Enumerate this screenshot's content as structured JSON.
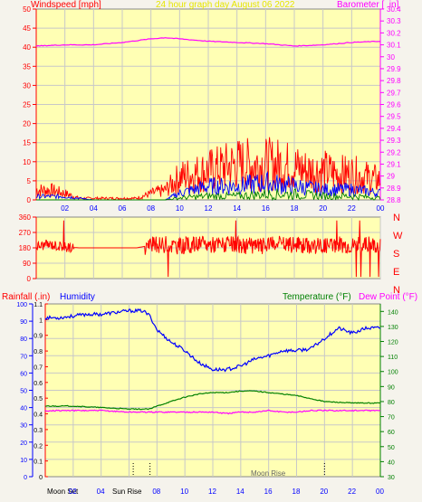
{
  "colors": {
    "background": "#f5f3ec",
    "plot_bg": "#ffffb4",
    "grid": "#c8c8c8",
    "axis_red": "#ff0000",
    "magenta": "#ff00ff",
    "blue": "#0000ff",
    "green": "#008000",
    "title_yellow": "#e6e600",
    "dark": "#000000"
  },
  "chart_data": [
    {
      "id": "wind",
      "type": "line",
      "title": "24 hour graph day   August 06 2022",
      "left_label": "Windspeed [mph]",
      "right_label": "Barometer [ .in]",
      "x_ticks": [
        "02",
        "04",
        "06",
        "08",
        "10",
        "12",
        "14",
        "16",
        "18",
        "20",
        "22",
        "00"
      ],
      "y_left_ticks": [
        "0",
        "5",
        "10",
        "15",
        "20",
        "25",
        "30",
        "35",
        "40",
        "45",
        "50"
      ],
      "y_left_lim": [
        0,
        50
      ],
      "y_right_ticks": [
        "28.8",
        "28.9",
        "29",
        "29.1",
        "29.2",
        "29.3",
        "29.4",
        "29.5",
        "29.6",
        "29.7",
        "29.8",
        "29.9",
        "30",
        "30.1",
        "30.2",
        "30.3",
        "30.4"
      ],
      "y_right_lim": [
        28.8,
        30.4
      ],
      "grid": true,
      "series": [
        {
          "key": "barometer",
          "axis": "right",
          "x": [
            0,
            2,
            4,
            6,
            8,
            9,
            10,
            12,
            14,
            16,
            18,
            20,
            22,
            24
          ],
          "y": [
            30.09,
            30.1,
            30.1,
            30.12,
            30.15,
            30.16,
            30.15,
            30.13,
            30.12,
            30.11,
            30.09,
            30.1,
            30.12,
            30.13
          ]
        },
        {
          "key": "gust",
          "axis": "left",
          "x": [
            0,
            1,
            2,
            3,
            4,
            5,
            6,
            7,
            8,
            9,
            10,
            11,
            12,
            13,
            14,
            15,
            16,
            17,
            18,
            19,
            20,
            21,
            22,
            23,
            24
          ],
          "y": [
            3,
            3,
            2,
            0.5,
            0.5,
            0.5,
            0.5,
            0.5,
            2,
            3,
            7,
            8,
            9,
            10,
            11,
            11,
            11,
            11,
            10,
            9,
            9,
            8,
            8,
            7,
            6
          ]
        },
        {
          "key": "wind_avg",
          "axis": "left",
          "x": [
            0,
            2,
            4,
            6,
            8,
            9,
            10,
            12,
            14,
            16,
            18,
            20,
            22,
            24
          ],
          "y": [
            1,
            1,
            0,
            0,
            0,
            0,
            2,
            4,
            4,
            5,
            4,
            3,
            3,
            2
          ]
        },
        {
          "key": "wind_low",
          "axis": "left",
          "x": [
            0,
            2,
            4,
            6,
            8,
            9,
            10,
            12,
            14,
            16,
            18,
            20,
            22,
            24
          ],
          "y": [
            0,
            0,
            0,
            0,
            0,
            0,
            0.5,
            1,
            1,
            1.5,
            1.5,
            1,
            1,
            0.5
          ]
        }
      ]
    },
    {
      "id": "dir",
      "type": "line",
      "right_labels": [
        "N",
        "W",
        "S",
        "E",
        "N"
      ],
      "y_left_ticks": [
        "0",
        "90",
        "180",
        "270",
        "360"
      ],
      "y_left_lim": [
        0,
        360
      ],
      "grid": true,
      "series": [
        {
          "key": "direction",
          "axis": "left",
          "x": [
            0,
            1,
            2,
            3,
            4,
            5,
            6,
            7,
            8,
            9,
            10,
            11,
            12,
            13,
            14,
            15,
            16,
            17,
            18,
            19,
            20,
            21,
            22,
            23,
            24
          ],
          "y": [
            190,
            200,
            185,
            180,
            180,
            180,
            180,
            180,
            195,
            200,
            190,
            200,
            200,
            200,
            195,
            190,
            195,
            200,
            200,
            195,
            195,
            200,
            195,
            200,
            200
          ]
        }
      ]
    },
    {
      "id": "temp",
      "type": "line",
      "left_labels": [
        "Rainfall (.in)",
        "Humidity"
      ],
      "right_labels": [
        "Temperature (°F)",
        "Dew Point (°F)"
      ],
      "y_left_ticks": [
        "0",
        "10",
        "20",
        "30",
        "40",
        "50",
        "60",
        "70",
        "80",
        "90",
        "100"
      ],
      "y_left_lim": [
        0,
        100
      ],
      "y_rain_ticks": [
        "0",
        "0.1",
        "0.2",
        "0.3",
        "0.4",
        "0.5",
        "0.6",
        "0.7",
        "0.8",
        "0.9",
        "1",
        "1.1"
      ],
      "y_rain_lim": [
        0,
        1.1
      ],
      "y_right_ticks": [
        "30",
        "40",
        "50",
        "60",
        "70",
        "80",
        "90",
        "100",
        "110",
        "120",
        "130",
        "140"
      ],
      "y_right_lim": [
        30,
        145
      ],
      "x_ticks": [
        "Moon Set",
        "02",
        "04",
        "Sun Rise",
        "08",
        "10",
        "12",
        "14",
        "16",
        "18",
        "20",
        "22",
        "00"
      ],
      "moon_rise_label": "Moon Rise",
      "grid": true,
      "series": [
        {
          "key": "humidity",
          "axis": "left",
          "x": [
            0,
            1,
            2,
            3,
            4,
            5,
            6,
            7,
            7.5,
            8,
            9,
            10,
            11,
            12,
            13,
            14,
            15,
            16,
            17,
            18,
            19,
            20,
            21,
            22,
            23,
            24
          ],
          "y": [
            92,
            92,
            93,
            94,
            94,
            95,
            96,
            96,
            93,
            85,
            78,
            73,
            66,
            62,
            62,
            64,
            68,
            70,
            73,
            73,
            74,
            80,
            86,
            83,
            86,
            86
          ]
        },
        {
          "key": "temperature",
          "axis": "right",
          "x": [
            0,
            2,
            4,
            6,
            7.5,
            8,
            9,
            10,
            11,
            12,
            13,
            14,
            15,
            16,
            17,
            18,
            19,
            20,
            22,
            24
          ],
          "y": [
            77,
            77,
            76,
            75,
            75,
            77,
            80,
            83,
            85,
            86,
            86,
            87,
            87,
            86,
            85,
            84,
            82,
            80,
            79,
            79
          ]
        },
        {
          "key": "dewpoint",
          "axis": "right",
          "x": [
            0,
            2,
            4,
            6,
            7.5,
            8,
            9,
            10,
            11,
            12,
            13,
            14,
            15,
            16,
            17,
            18,
            19,
            20,
            22,
            24
          ],
          "y": [
            74,
            74,
            74,
            73,
            73,
            73,
            73,
            73,
            73,
            73,
            72,
            73,
            73,
            74,
            73,
            73,
            74,
            74,
            74,
            74
          ]
        }
      ]
    }
  ]
}
